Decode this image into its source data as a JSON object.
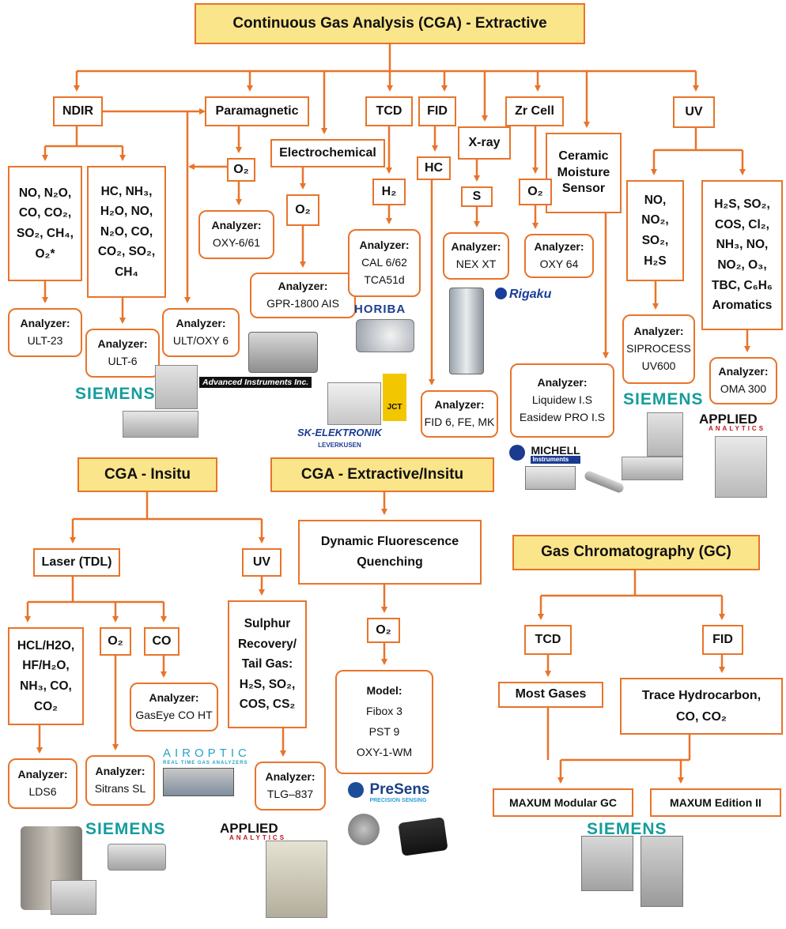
{
  "top_header": "Continuous Gas Analysis (CGA) - Extractive",
  "techniques": {
    "ndir": "NDIR",
    "paramagnetic": "Paramagnetic",
    "electrochemical": "Electrochemical",
    "tcd": "TCD",
    "fid": "FID",
    "xray": "X-ray",
    "zrcell": "Zr Cell",
    "ceramic": [
      "Ceramic",
      "Moisture",
      "Sensor"
    ],
    "uv": "UV"
  },
  "gases": {
    "ndir_list_1": [
      "NO, N₂O,",
      "CO, CO₂,",
      "SO₂, CH₄,",
      "O₂*"
    ],
    "ndir_list_2": [
      "HC,  NH₃,",
      "H₂O, NO,",
      "N₂O, CO,",
      "CO₂, SO₂,",
      "CH₄"
    ],
    "para_o2": "O₂",
    "electro_o2": "O₂",
    "tcd_h2": "H₂",
    "fid_hc": "HC",
    "xray_s": "S",
    "zr_o2": "O₂",
    "uv_list_1": [
      "NO,",
      "NO₂,",
      "SO₂,",
      "H₂S"
    ],
    "uv_list_2": [
      "H₂S, SO₂,",
      "COS, Cl₂,",
      "NH₃, NO,",
      "NO₂, O₃,",
      "TBC, C₆H₆",
      "Aromatics"
    ]
  },
  "analyzer_label": "Analyzer:",
  "model_label": "Model:",
  "analyzers": {
    "ult23": "ULT-23",
    "ult6": "ULT-6",
    "ultoxy6": "ULT/OXY 6",
    "oxy661": "OXY-6/61",
    "gpr": "GPR-1800 AIS",
    "cal": [
      "CAL 6/62",
      "TCA51d"
    ],
    "nex": "NEX XT",
    "oxy64": "OXY 64",
    "fid6": "FID 6, FE, MK",
    "liquidew": [
      "Liquidew I.S",
      "Easidew PRO I.S"
    ],
    "siprocess": [
      "SIPROCESS",
      "UV600"
    ],
    "oma": "OMA 300"
  },
  "insitu": {
    "header": "CGA - Insitu",
    "laser": "Laser (TDL)",
    "uv": "UV",
    "laser_list": [
      "HCL/H2O,",
      "HF/H₂O,",
      "NH₃, CO,",
      "CO₂"
    ],
    "o2": "O₂",
    "co": "CO",
    "sulphur": [
      "Sulphur",
      "Recovery/",
      "Tail Gas:",
      "H₂S, SO₂,",
      "COS, CS₂"
    ],
    "gaseye": "GasEye CO HT",
    "lds6": "LDS6",
    "sitrans": "Sitrans SL",
    "tlg": "TLG–837"
  },
  "ext_insitu": {
    "header": "CGA - Extractive/Insitu",
    "dfq": [
      "Dynamic Fluorescence",
      "Quenching"
    ],
    "o2": "O₂",
    "models": [
      "Fibox 3",
      "PST 9",
      "OXY-1-WM"
    ]
  },
  "gc": {
    "header": "Gas Chromatography (GC)",
    "tcd": "TCD",
    "fid": "FID",
    "most": "Most Gases",
    "trace": [
      "Trace Hydrocarbon,",
      "CO, CO₂"
    ],
    "maxum_mod": "MAXUM Modular GC",
    "maxum_ed": "MAXUM Edition II"
  },
  "logos": {
    "siemens": "SIEMENS",
    "advanced": "Advanced Instruments Inc.",
    "horiba": "HORIBA",
    "rigaku": "Rigaku",
    "jct": "JCT",
    "sk": "SK-ELEKTRONIK",
    "sk_sub": "LEVERKUSEN",
    "michell": "MICHELL",
    "michell_sub": "Instruments",
    "applied": "APPLIED",
    "applied_sub": "ANALYTICS",
    "airoptic": "AIROPTIC",
    "airoptic_sub": "REAL TIME GAS ANALYZERS",
    "presens": "PreSens",
    "presens_sub": "PRECISION SENSING"
  },
  "colors": {
    "line": "#e8742a",
    "header_fill": "#fbe58a",
    "siemens": "#169c9c"
  }
}
